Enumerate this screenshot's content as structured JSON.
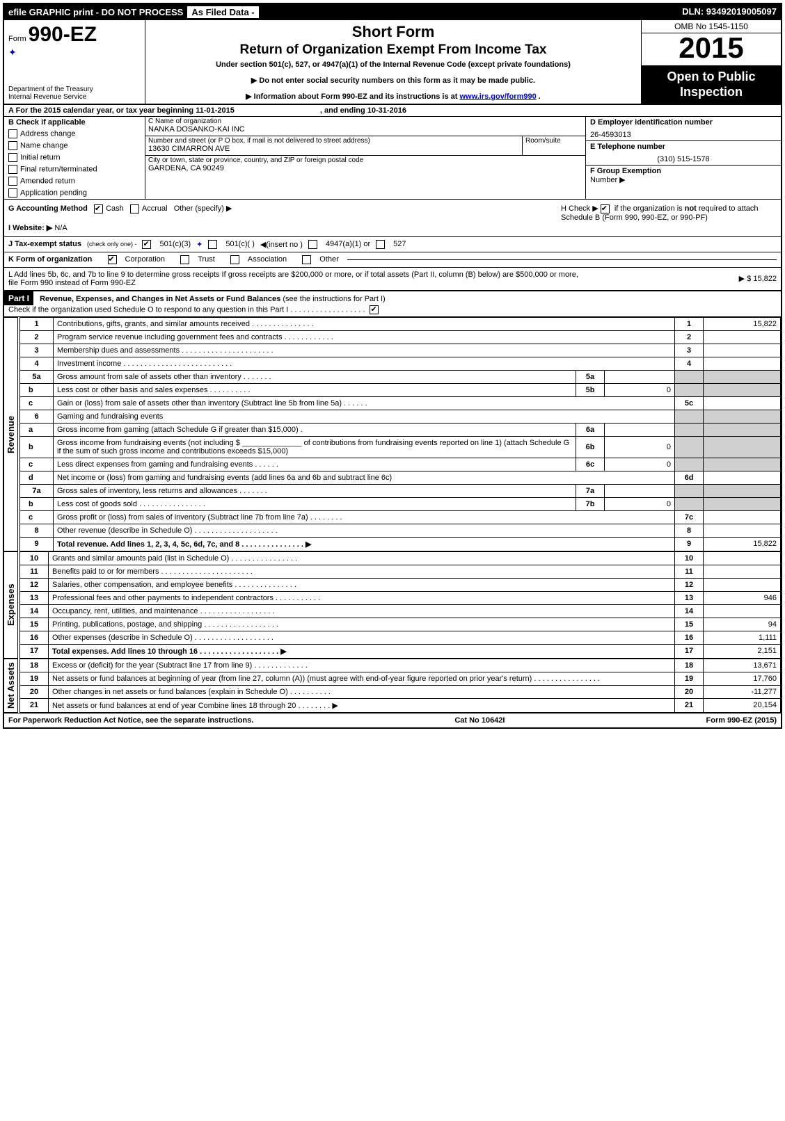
{
  "topbar": {
    "left1": "efile GRAPHIC print - DO NOT PROCESS",
    "left2": "As Filed Data -",
    "dln": "DLN: 93492019005097"
  },
  "header": {
    "form_word": "Form",
    "form_number": "990-EZ",
    "dept1": "Department of the Treasury",
    "dept2": "Internal Revenue Service",
    "title1": "Short Form",
    "title2": "Return of Organization Exempt From Income Tax",
    "subtitle": "Under section 501(c), 527, or 4947(a)(1) of the Internal Revenue Code (except private foundations)",
    "notice1": "▶ Do not enter social security numbers on this form as it may be made public.",
    "notice2": "▶ Information about Form 990-EZ and its instructions is at ",
    "notice2_link": "www.irs.gov/form990",
    "notice2_tail": ".",
    "omb": "OMB No 1545-1150",
    "year": "2015",
    "inspect1": "Open to Public",
    "inspect2": "Inspection"
  },
  "rowA": {
    "label": "A  For the 2015 calendar year, or tax year beginning 11-01-2015",
    "ending": ", and ending 10-31-2016"
  },
  "colB": {
    "header": "B  Check if applicable",
    "items": [
      "Address change",
      "Name change",
      "Initial return",
      "Final return/terminated",
      "Amended return",
      "Application pending"
    ]
  },
  "colC": {
    "name_label": "C Name of organization",
    "name_value": "NANKA DOSANKO-KAI INC",
    "street_label": "Number and street (or P  O  box, if mail is not delivered to street address)",
    "room_label": "Room/suite",
    "street_value": "13630 CIMARRON AVE",
    "city_label": "City or town, state or province, country, and ZIP or foreign postal code",
    "city_value": "GARDENA, CA 90249"
  },
  "colD": {
    "ein_label": "D Employer identification number",
    "ein_value": "26-4593013",
    "phone_label": "E Telephone number",
    "phone_value": "(310) 515-1578",
    "group_label": "F Group Exemption",
    "group_label2": "Number     ▶"
  },
  "lineG": {
    "label": "G Accounting Method",
    "opt_cash": "Cash",
    "opt_accrual": "Accrual",
    "opt_other": "Other (specify) ▶"
  },
  "lineH": {
    "text": "H   Check ▶",
    "tail": " if the organization is ",
    "not": "not",
    "tail2": " required to attach Schedule B (Form 990, 990-EZ, or 990-PF)"
  },
  "lineI": {
    "label": "I Website: ▶",
    "value": "N/A"
  },
  "lineJ": {
    "label": "J Tax-exempt status",
    "note": "(check only one) -",
    "o1": "501(c)(3)",
    "o2": "501(c)(  )",
    "o2_note": "◀(insert no )",
    "o3": "4947(a)(1) or",
    "o4": "527"
  },
  "lineK": {
    "label": "K Form of organization",
    "o1": "Corporation",
    "o2": "Trust",
    "o3": "Association",
    "o4": "Other"
  },
  "lineL": {
    "text": "L Add lines 5b, 6c, and 7b to line 9 to determine gross receipts  If gross receipts are $200,000 or more, or if total assets (Part II, column (B) below) are $500,000 or more, file Form 990 instead of Form 990-EZ",
    "amount": "▶ $ 15,822"
  },
  "partI": {
    "badge": "Part I",
    "title": "Revenue, Expenses, and Changes in Net Assets or Fund Balances",
    "note": " (see the instructions for Part I)",
    "check": "Check if the organization used Schedule O to respond to any question in this Part I  .  .  .  .  .  .  .  .  .  .  .  .  .  .  .  .  .  ."
  },
  "sections": {
    "revenue": "Revenue",
    "expenses": "Expenses",
    "netassets": "Net Assets"
  },
  "rows": [
    {
      "n": "1",
      "t": "Contributions, gifts, grants, and similar amounts received     .   .   .   .   .   .   .   .   .   .   .   .   .   .   .",
      "r": "1",
      "v": "15,822"
    },
    {
      "n": "2",
      "t": "Program service revenue including government fees and contracts     .   .   .   .   .   .   .   .   .   .   .   .",
      "r": "2",
      "v": ""
    },
    {
      "n": "3",
      "t": "Membership dues and assessments      .   .   .   .   .   .   .   .   .   .   .   .   .   .   .   .   .   .   .   .   .   .",
      "r": "3",
      "v": ""
    },
    {
      "n": "4",
      "t": "Investment income      .   .   .   .   .   .   .   .   .   .   .   .   .   .   .   .   .   .   .   .   .   .   .   .   .   .",
      "r": "4",
      "v": ""
    },
    {
      "n": "5a",
      "t": "Gross amount from sale of assets other than inventory       .   .   .   .   .   .   .",
      "ml": "5a",
      "mv": ""
    },
    {
      "n": "b",
      "t": "Less  cost or other basis and sales expenses        .   .   .   .   .   .   .   .   .   .",
      "ml": "5b",
      "mv": "0"
    },
    {
      "n": "c",
      "t": "Gain or (loss) from sale of assets other than inventory (Subtract line 5b from line 5a)    .   .   .   .   .   .",
      "r": "5c",
      "v": ""
    },
    {
      "n": "6",
      "t": "Gaming and fundraising events"
    },
    {
      "n": "a",
      "t": "Gross income from gaming (attach Schedule G if greater than $15,000)          .",
      "ml": "6a",
      "mv": ""
    },
    {
      "n": "b",
      "t": "Gross income from fundraising events (not including $ ______________ of contributions from fundraising events reported on line 1) (attach Schedule G if the sum of such gross income and contributions exceeds $15,000)",
      "ml": "6b",
      "mv": "0"
    },
    {
      "n": "c",
      "t": "Less  direct expenses from gaming and fundraising events      .   .   .   .   .   .",
      "ml": "6c",
      "mv": "0"
    },
    {
      "n": "d",
      "t": "Net income or (loss) from gaming and fundraising events (add lines 6a and 6b and subtract line 6c)",
      "r": "6d",
      "v": ""
    },
    {
      "n": "7a",
      "t": "Gross sales of inventory, less returns and allowances       .   .   .   .   .   .   .",
      "ml": "7a",
      "mv": ""
    },
    {
      "n": "b",
      "t": "Less  cost of goods sold          .   .   .   .   .   .   .   .   .   .   .   .   .   .   .   .",
      "ml": "7b",
      "mv": "0"
    },
    {
      "n": "c",
      "t": "Gross profit or (loss) from sales of inventory (Subtract line 7b from line 7a)     .   .   .   .   .   .   .   .",
      "r": "7c",
      "v": ""
    },
    {
      "n": "8",
      "t": "Other revenue (describe in Schedule O)     .   .   .   .   .   .   .   .   .   .   .   .   .   .   .   .   .   .   .   .",
      "r": "8",
      "v": ""
    },
    {
      "n": "9",
      "t": "Total revenue. Add lines 1, 2, 3, 4, 5c, 6d, 7c, and 8     .   .   .   .   .   .   .   .   .   .   .   .   .   .   .  ▶",
      "r": "9",
      "v": "15,822",
      "bold": true
    }
  ],
  "exp_rows": [
    {
      "n": "10",
      "t": "Grants and similar amounts paid (list in Schedule O)    .   .   .   .   .   .   .   .   .   .   .   .   .   .   .   .",
      "r": "10",
      "v": ""
    },
    {
      "n": "11",
      "t": "Benefits paid to or for members      .   .   .   .   .   .   .   .   .   .   .   .   .   .   .   .   .   .   .   .   .   .",
      "r": "11",
      "v": ""
    },
    {
      "n": "12",
      "t": "Salaries, other compensation, and employee benefits       .   .   .   .   .   .   .   .   .   .   .   .   .   .   .",
      "r": "12",
      "v": ""
    },
    {
      "n": "13",
      "t": "Professional fees and other payments to independent contractors       .   .   .   .   .   .   .   .   .   .   .",
      "r": "13",
      "v": "946"
    },
    {
      "n": "14",
      "t": "Occupancy, rent, utilities, and maintenance       .   .   .   .   .   .   .   .   .   .   .   .   .   .   .   .   .   .",
      "r": "14",
      "v": ""
    },
    {
      "n": "15",
      "t": "Printing, publications, postage, and shipping      .   .   .   .   .   .   .   .   .   .   .   .   .   .   .   .   .   .",
      "r": "15",
      "v": "94"
    },
    {
      "n": "16",
      "t": "Other expenses (describe in Schedule O)      .   .   .   .   .   .   .   .   .   .   .   .   .   .   .   .   .   .   .",
      "r": "16",
      "v": "1,111"
    },
    {
      "n": "17",
      "t": "Total expenses. Add lines 10 through 16      .   .   .   .   .   .   .   .   .   .   .   .   .   .   .   .   .   .   .  ▶",
      "r": "17",
      "v": "2,151",
      "bold": true
    }
  ],
  "na_rows": [
    {
      "n": "18",
      "t": "Excess or (deficit) for the year (Subtract line 17 from line 9)       .   .   .   .   .   .   .   .   .   .   .   .   .",
      "r": "18",
      "v": "13,671"
    },
    {
      "n": "19",
      "t": "Net assets or fund balances at beginning of year (from line 27, column (A)) (must agree with end-of-year figure reported on prior year's return)      .   .   .   .   .   .   .   .   .   .   .   .   .   .   .   .",
      "r": "19",
      "v": "17,760"
    },
    {
      "n": "20",
      "t": "Other changes in net assets or fund balances (explain in Schedule O)     .   .   .   .   .   .   .   .   .   .",
      "r": "20",
      "v": "-11,277"
    },
    {
      "n": "21",
      "t": "Net assets or fund balances at end of year  Combine lines 18 through 20    .   .   .   .   .   .   .   .  ▶",
      "r": "21",
      "v": "20,154"
    }
  ],
  "footer": {
    "left": "For Paperwork Reduction Act Notice, see the separate instructions.",
    "mid": "Cat  No  10642I",
    "right": "Form 990-EZ (2015)"
  }
}
